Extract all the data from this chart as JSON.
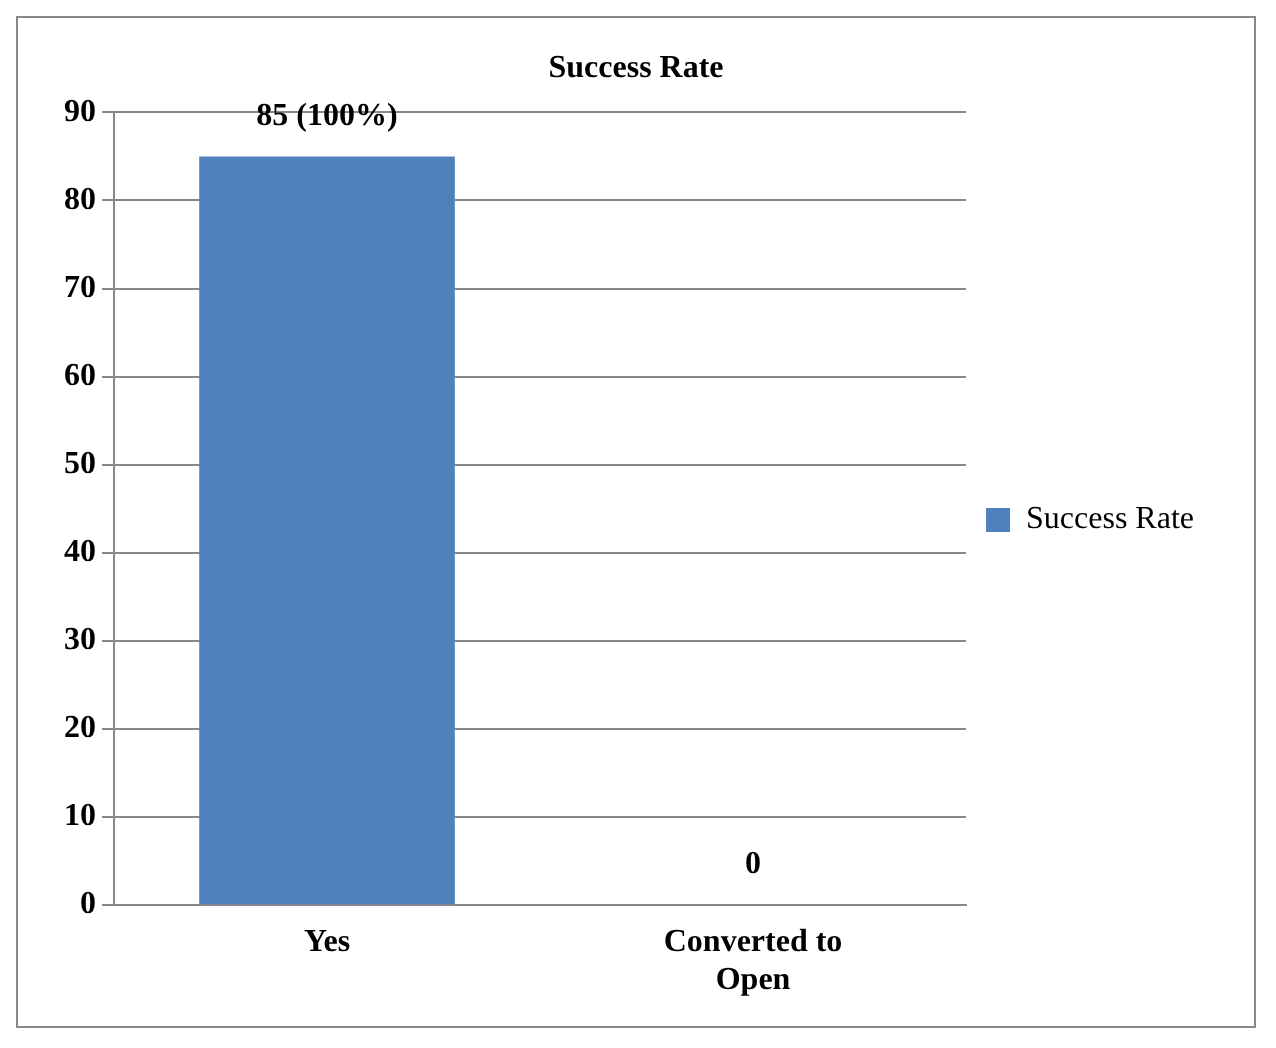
{
  "chart_data": {
    "type": "bar",
    "title": "Success Rate",
    "categories": [
      "Yes",
      "Converted to Open"
    ],
    "series": [
      {
        "name": "Success Rate",
        "color": "#4f81bd",
        "values": [
          85,
          0
        ],
        "value_labels": [
          "85 (100%)",
          "0"
        ]
      }
    ],
    "ylim": [
      0,
      90
    ],
    "yticks": [
      0,
      10,
      20,
      30,
      40,
      50,
      60,
      70,
      80,
      90
    ],
    "grid": "y",
    "legend": "right"
  }
}
